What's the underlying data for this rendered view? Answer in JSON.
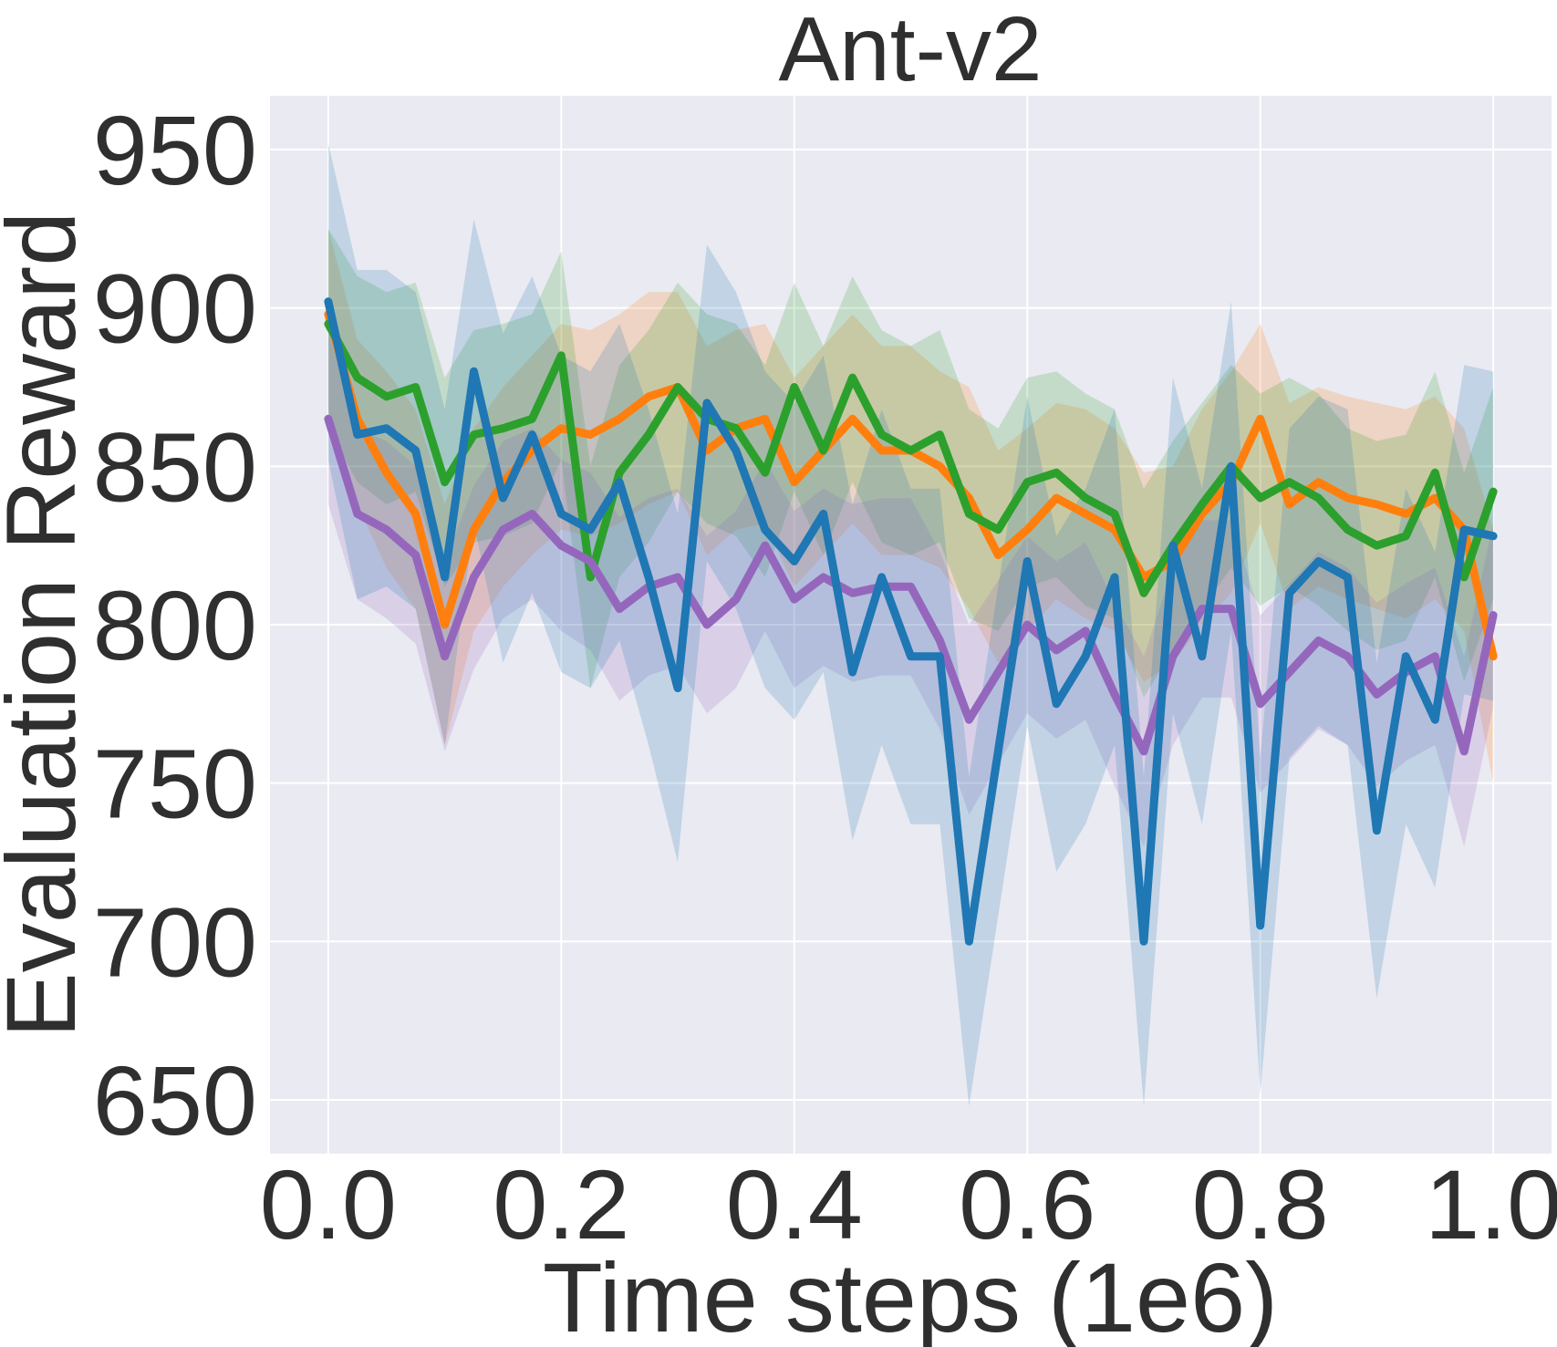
{
  "chart_data": {
    "type": "line",
    "title": "Ant-v2",
    "xlabel": "Time steps (1e6)",
    "ylabel": "Evaluation Reward",
    "xlim": [
      -0.05,
      1.05
    ],
    "ylim": [
      633,
      967
    ],
    "xticks": [
      0.0,
      0.2,
      0.4,
      0.6,
      0.8,
      1.0
    ],
    "xtick_labels": [
      "0.0",
      "0.2",
      "0.4",
      "0.6",
      "0.8",
      "1.0"
    ],
    "yticks": [
      650,
      700,
      750,
      800,
      850,
      900,
      950
    ],
    "ytick_labels": [
      "650",
      "700",
      "750",
      "800",
      "850",
      "900",
      "950"
    ],
    "grid": true,
    "background": "#eaeaf2",
    "x": [
      0.0,
      0.025,
      0.05,
      0.075,
      0.1,
      0.125,
      0.15,
      0.175,
      0.2,
      0.225,
      0.25,
      0.275,
      0.3,
      0.325,
      0.35,
      0.375,
      0.4,
      0.425,
      0.45,
      0.475,
      0.5,
      0.525,
      0.55,
      0.575,
      0.6,
      0.625,
      0.65,
      0.675,
      0.7,
      0.725,
      0.75,
      0.775,
      0.8,
      0.825,
      0.85,
      0.875,
      0.9,
      0.925,
      0.95,
      0.975,
      1.0
    ],
    "series": [
      {
        "color": "#ff7f0e",
        "values": [
          898,
          865,
          848,
          835,
          800,
          830,
          845,
          855,
          862,
          860,
          865,
          872,
          875,
          855,
          862,
          865,
          845,
          855,
          865,
          855,
          855,
          850,
          840,
          822,
          830,
          840,
          835,
          830,
          815,
          820,
          835,
          845,
          865,
          838,
          845,
          840,
          838,
          835,
          840,
          830,
          790
        ],
        "upper": [
          925,
          890,
          880,
          868,
          838,
          862,
          875,
          885,
          895,
          893,
          898,
          905,
          905,
          888,
          893,
          895,
          878,
          888,
          898,
          888,
          888,
          880,
          875,
          855,
          862,
          870,
          868,
          862,
          848,
          850,
          868,
          880,
          895,
          870,
          875,
          872,
          870,
          868,
          872,
          862,
          830
        ],
        "lower": [
          868,
          838,
          818,
          805,
          762,
          798,
          812,
          822,
          830,
          828,
          832,
          838,
          842,
          822,
          830,
          832,
          812,
          822,
          832,
          822,
          822,
          818,
          805,
          788,
          798,
          808,
          802,
          798,
          782,
          788,
          800,
          810,
          832,
          805,
          812,
          808,
          805,
          802,
          808,
          798,
          750
        ]
      },
      {
        "color": "#2ca02c",
        "values": [
          895,
          878,
          872,
          875,
          845,
          860,
          862,
          865,
          885,
          815,
          848,
          860,
          875,
          865,
          862,
          848,
          875,
          855,
          878,
          860,
          855,
          860,
          835,
          830,
          845,
          848,
          840,
          835,
          810,
          825,
          838,
          850,
          840,
          845,
          840,
          830,
          825,
          828,
          848,
          815,
          842
        ],
        "upper": [
          925,
          910,
          905,
          908,
          878,
          893,
          895,
          898,
          918,
          850,
          882,
          893,
          908,
          898,
          895,
          882,
          908,
          888,
          910,
          893,
          888,
          893,
          868,
          862,
          878,
          880,
          873,
          868,
          843,
          858,
          870,
          882,
          873,
          878,
          873,
          862,
          858,
          860,
          880,
          848,
          875
        ],
        "lower": [
          862,
          845,
          838,
          842,
          812,
          826,
          828,
          832,
          852,
          780,
          815,
          826,
          842,
          832,
          828,
          815,
          842,
          822,
          845,
          826,
          822,
          826,
          802,
          798,
          812,
          815,
          806,
          802,
          777,
          792,
          805,
          818,
          806,
          812,
          806,
          798,
          792,
          795,
          815,
          782,
          808
        ]
      },
      {
        "color": "#9467bd",
        "values": [
          865,
          835,
          830,
          822,
          790,
          815,
          830,
          835,
          825,
          820,
          805,
          812,
          815,
          800,
          808,
          825,
          808,
          815,
          810,
          812,
          812,
          795,
          770,
          785,
          800,
          792,
          798,
          778,
          760,
          790,
          805,
          805,
          775,
          785,
          795,
          790,
          778,
          785,
          790,
          760,
          803
        ],
        "upper": [
          892,
          862,
          858,
          850,
          820,
          844,
          858,
          862,
          852,
          848,
          834,
          840,
          843,
          828,
          836,
          852,
          836,
          843,
          838,
          840,
          840,
          823,
          800,
          814,
          828,
          820,
          826,
          807,
          790,
          818,
          833,
          833,
          803,
          813,
          823,
          818,
          807,
          813,
          818,
          790,
          832
        ],
        "lower": [
          838,
          808,
          802,
          794,
          760,
          786,
          802,
          808,
          798,
          792,
          776,
          784,
          787,
          772,
          780,
          798,
          780,
          787,
          782,
          784,
          784,
          767,
          740,
          756,
          772,
          764,
          770,
          749,
          730,
          762,
          777,
          777,
          747,
          757,
          767,
          762,
          749,
          757,
          762,
          730,
          774
        ]
      },
      {
        "color": "#1f77b4",
        "values": [
          902,
          860,
          862,
          855,
          815,
          880,
          840,
          860,
          835,
          830,
          845,
          815,
          780,
          870,
          855,
          830,
          820,
          835,
          785,
          815,
          790,
          790,
          700,
          760,
          820,
          775,
          790,
          815,
          700,
          825,
          790,
          850,
          705,
          810,
          820,
          815,
          735,
          790,
          770,
          830,
          828
        ],
        "upper": [
          952,
          912,
          912,
          905,
          868,
          928,
          892,
          910,
          885,
          880,
          895,
          868,
          835,
          920,
          905,
          880,
          870,
          885,
          838,
          868,
          843,
          843,
          752,
          812,
          872,
          828,
          843,
          868,
          752,
          878,
          843,
          902,
          758,
          862,
          872,
          868,
          788,
          843,
          823,
          882,
          880
        ],
        "lower": [
          852,
          808,
          812,
          805,
          762,
          832,
          788,
          810,
          785,
          780,
          795,
          762,
          725,
          820,
          805,
          780,
          770,
          785,
          732,
          762,
          737,
          737,
          648,
          708,
          768,
          722,
          737,
          762,
          648,
          772,
          737,
          798,
          652,
          758,
          768,
          762,
          682,
          737,
          717,
          778,
          776
        ]
      }
    ]
  }
}
